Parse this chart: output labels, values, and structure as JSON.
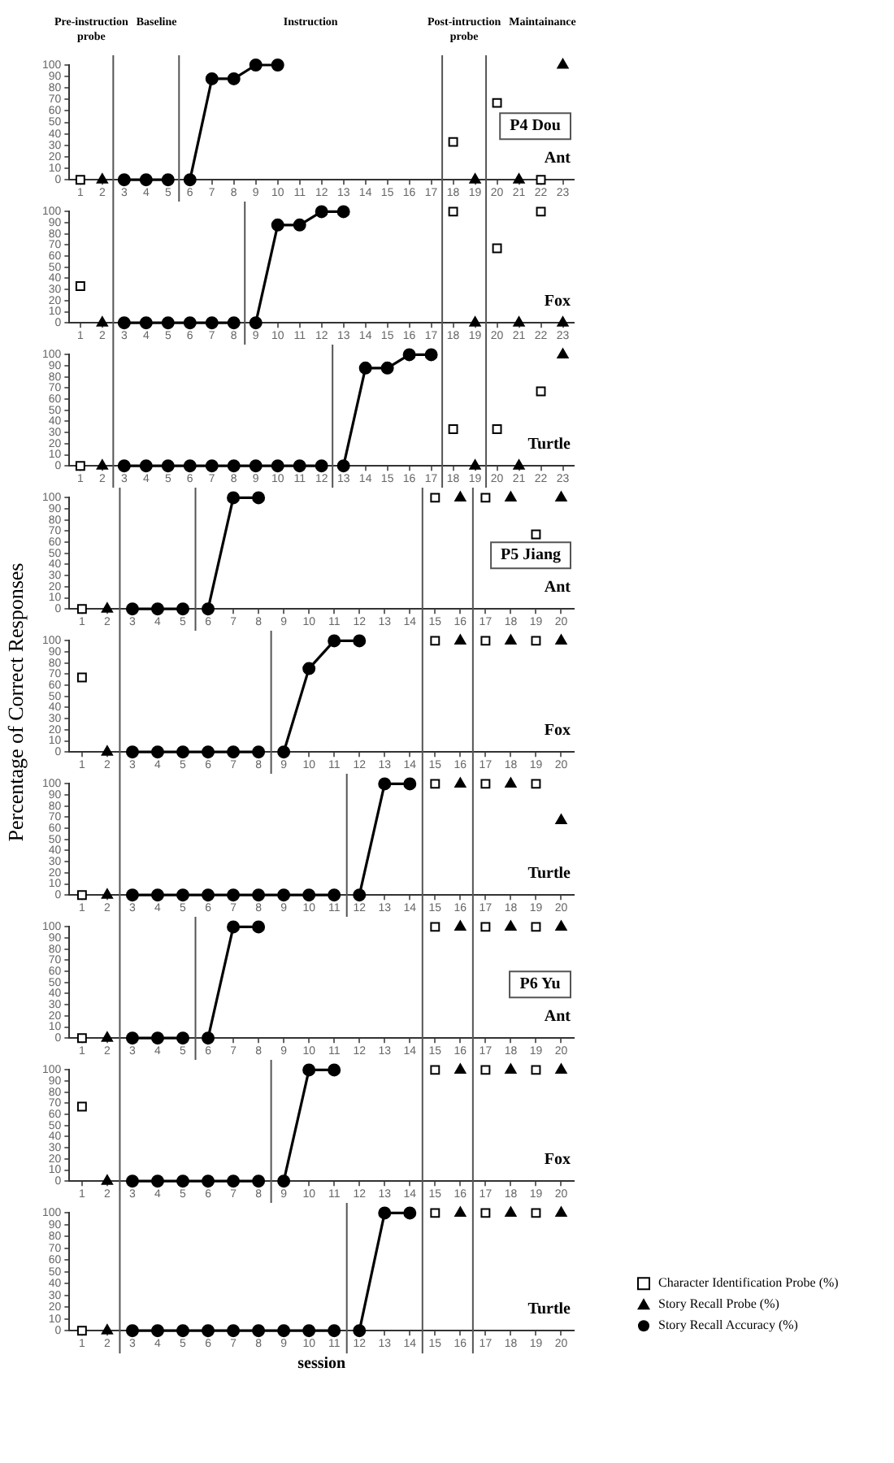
{
  "chart_data": [
    {
      "type": "line",
      "title": "Ant",
      "subtitle": "P4 Dou",
      "annotations": [
        "Pre-instruction probe",
        "Baseline",
        "Instruction",
        "Post-intruction probe",
        "Maintainance"
      ],
      "xlim": [
        0.5,
        23.5
      ],
      "xticks": [
        1,
        2,
        3,
        4,
        5,
        6,
        7,
        8,
        9,
        10,
        11,
        12,
        13,
        14,
        15,
        16,
        17,
        18,
        19,
        20,
        21,
        22,
        23
      ],
      "ylim": [
        0,
        100
      ],
      "yticks": [
        0,
        10,
        20,
        30,
        40,
        50,
        60,
        70,
        80,
        90,
        100
      ],
      "ref_lines": [
        {
          "axis": "x",
          "value": 2.5
        },
        {
          "axis": "x",
          "value": 5.5
        },
        {
          "axis": "x",
          "value": 17.5
        },
        {
          "axis": "x",
          "value": 19.5
        }
      ],
      "series": [
        {
          "type": "scatter",
          "marker": "square",
          "color": "#000000",
          "x": [
            1,
            18,
            20,
            22
          ],
          "values": [
            0,
            33,
            67,
            0
          ]
        },
        {
          "type": "scatter",
          "marker": "triangle",
          "color": "#000000",
          "x": [
            2,
            19,
            21,
            23
          ],
          "values": [
            0,
            0,
            0,
            100
          ]
        },
        {
          "type": "line",
          "marker": "circle",
          "color": "#000000",
          "x": [
            3,
            4,
            5
          ],
          "values": [
            0,
            0,
            0
          ]
        },
        {
          "type": "line",
          "marker": "circle",
          "color": "#000000",
          "x": [
            6,
            7,
            8,
            9,
            10
          ],
          "values": [
            0,
            88,
            88,
            100,
            100
          ]
        }
      ]
    },
    {
      "type": "line",
      "title": "Fox",
      "xlim": [
        0.5,
        23.5
      ],
      "xticks": [
        1,
        2,
        3,
        4,
        5,
        6,
        7,
        8,
        9,
        10,
        11,
        12,
        13,
        14,
        15,
        16,
        17,
        18,
        19,
        20,
        21,
        22,
        23
      ],
      "ylim": [
        0,
        100
      ],
      "yticks": [
        0,
        10,
        20,
        30,
        40,
        50,
        60,
        70,
        80,
        90,
        100
      ],
      "ref_lines": [
        {
          "axis": "x",
          "value": 2.5
        },
        {
          "axis": "x",
          "value": 8.5
        },
        {
          "axis": "x",
          "value": 17.5
        },
        {
          "axis": "x",
          "value": 19.5
        }
      ],
      "series": [
        {
          "type": "scatter",
          "marker": "square",
          "color": "#000000",
          "x": [
            1,
            18,
            20,
            22
          ],
          "values": [
            33,
            100,
            67,
            100
          ]
        },
        {
          "type": "scatter",
          "marker": "triangle",
          "color": "#000000",
          "x": [
            2,
            19,
            21,
            23
          ],
          "values": [
            0,
            0,
            0,
            0
          ]
        },
        {
          "type": "line",
          "marker": "circle",
          "color": "#000000",
          "x": [
            3,
            4,
            5,
            6,
            7,
            8
          ],
          "values": [
            0,
            0,
            0,
            0,
            0,
            0
          ]
        },
        {
          "type": "line",
          "marker": "circle",
          "color": "#000000",
          "x": [
            9,
            10,
            11,
            12,
            13
          ],
          "values": [
            0,
            88,
            88,
            100,
            100
          ]
        }
      ]
    },
    {
      "type": "line",
      "title": "Turtle",
      "xlim": [
        0.5,
        23.5
      ],
      "xticks": [
        1,
        2,
        3,
        4,
        5,
        6,
        7,
        8,
        9,
        10,
        11,
        12,
        13,
        14,
        15,
        16,
        17,
        18,
        19,
        20,
        21,
        22,
        23
      ],
      "ylim": [
        0,
        100
      ],
      "yticks": [
        0,
        10,
        20,
        30,
        40,
        50,
        60,
        70,
        80,
        90,
        100
      ],
      "ref_lines": [
        {
          "axis": "x",
          "value": 2.5
        },
        {
          "axis": "x",
          "value": 12.5
        },
        {
          "axis": "x",
          "value": 17.5
        },
        {
          "axis": "x",
          "value": 19.5
        }
      ],
      "series": [
        {
          "type": "scatter",
          "marker": "square",
          "color": "#000000",
          "x": [
            1,
            18,
            20,
            22
          ],
          "values": [
            0,
            33,
            33,
            67
          ]
        },
        {
          "type": "scatter",
          "marker": "triangle",
          "color": "#000000",
          "x": [
            2,
            19,
            21,
            23
          ],
          "values": [
            0,
            0,
            0,
            100
          ]
        },
        {
          "type": "line",
          "marker": "circle",
          "color": "#000000",
          "x": [
            3,
            4,
            5,
            6,
            7,
            8,
            9,
            10,
            11,
            12
          ],
          "values": [
            0,
            0,
            0,
            0,
            0,
            0,
            0,
            0,
            0,
            0
          ]
        },
        {
          "type": "line",
          "marker": "circle",
          "color": "#000000",
          "x": [
            13,
            14,
            15,
            16,
            17
          ],
          "values": [
            0,
            88,
            88,
            100,
            100
          ]
        }
      ]
    },
    {
      "type": "line",
      "title": "Ant",
      "subtitle": "P5 Jiang",
      "xlim": [
        0.5,
        20.5
      ],
      "xticks": [
        1,
        2,
        3,
        4,
        5,
        6,
        7,
        8,
        9,
        10,
        11,
        12,
        13,
        14,
        15,
        16,
        17,
        18,
        19,
        20
      ],
      "ylim": [
        0,
        100
      ],
      "yticks": [
        0,
        10,
        20,
        30,
        40,
        50,
        60,
        70,
        80,
        90,
        100
      ],
      "ref_lines": [
        {
          "axis": "x",
          "value": 2.5
        },
        {
          "axis": "x",
          "value": 5.5
        },
        {
          "axis": "x",
          "value": 14.5
        },
        {
          "axis": "x",
          "value": 16.5
        }
      ],
      "series": [
        {
          "type": "scatter",
          "marker": "square",
          "color": "#000000",
          "x": [
            1,
            15,
            17,
            19
          ],
          "values": [
            0,
            100,
            100,
            67
          ]
        },
        {
          "type": "scatter",
          "marker": "triangle",
          "color": "#000000",
          "x": [
            2,
            16,
            18,
            20
          ],
          "values": [
            0,
            100,
            100,
            100
          ]
        },
        {
          "type": "line",
          "marker": "circle",
          "color": "#000000",
          "x": [
            3,
            4,
            5
          ],
          "values": [
            0,
            0,
            0
          ]
        },
        {
          "type": "line",
          "marker": "circle",
          "color": "#000000",
          "x": [
            6,
            7,
            8
          ],
          "values": [
            0,
            100,
            100
          ]
        }
      ]
    },
    {
      "type": "line",
      "title": "Fox",
      "ylabel": "Percentage of Correct Responses",
      "xlim": [
        0.5,
        20.5
      ],
      "xticks": [
        1,
        2,
        3,
        4,
        5,
        6,
        7,
        8,
        9,
        10,
        11,
        12,
        13,
        14,
        15,
        16,
        17,
        18,
        19,
        20
      ],
      "ylim": [
        0,
        100
      ],
      "yticks": [
        0,
        10,
        20,
        30,
        40,
        50,
        60,
        70,
        80,
        90,
        100
      ],
      "ref_lines": [
        {
          "axis": "x",
          "value": 2.5
        },
        {
          "axis": "x",
          "value": 8.5
        },
        {
          "axis": "x",
          "value": 14.5
        },
        {
          "axis": "x",
          "value": 16.5
        }
      ],
      "series": [
        {
          "type": "scatter",
          "marker": "square",
          "color": "#000000",
          "x": [
            1,
            15,
            17,
            19
          ],
          "values": [
            67,
            100,
            100,
            100
          ]
        },
        {
          "type": "scatter",
          "marker": "triangle",
          "color": "#000000",
          "x": [
            2,
            16,
            18,
            20
          ],
          "values": [
            0,
            100,
            100,
            100
          ]
        },
        {
          "type": "line",
          "marker": "circle",
          "color": "#000000",
          "x": [
            3,
            4,
            5,
            6,
            7,
            8
          ],
          "values": [
            0,
            0,
            0,
            0,
            0,
            0
          ]
        },
        {
          "type": "line",
          "marker": "circle",
          "color": "#000000",
          "x": [
            9,
            10,
            11,
            12
          ],
          "values": [
            0,
            75,
            100,
            100
          ]
        }
      ]
    },
    {
      "type": "line",
      "title": "Turtle",
      "xlim": [
        0.5,
        20.5
      ],
      "xticks": [
        1,
        2,
        3,
        4,
        5,
        6,
        7,
        8,
        9,
        10,
        11,
        12,
        13,
        14,
        15,
        16,
        17,
        18,
        19,
        20
      ],
      "ylim": [
        0,
        100
      ],
      "yticks": [
        0,
        10,
        20,
        30,
        40,
        50,
        60,
        70,
        80,
        90,
        100
      ],
      "ref_lines": [
        {
          "axis": "x",
          "value": 2.5
        },
        {
          "axis": "x",
          "value": 11.5
        },
        {
          "axis": "x",
          "value": 14.5
        },
        {
          "axis": "x",
          "value": 16.5
        }
      ],
      "series": [
        {
          "type": "scatter",
          "marker": "square",
          "color": "#000000",
          "x": [
            1,
            15,
            17,
            19
          ],
          "values": [
            0,
            100,
            100,
            100
          ]
        },
        {
          "type": "scatter",
          "marker": "triangle",
          "color": "#000000",
          "x": [
            2,
            16,
            18,
            20
          ],
          "values": [
            0,
            100,
            100,
            67
          ]
        },
        {
          "type": "line",
          "marker": "circle",
          "color": "#000000",
          "x": [
            3,
            4,
            5,
            6,
            7,
            8,
            9,
            10,
            11
          ],
          "values": [
            0,
            0,
            0,
            0,
            0,
            0,
            0,
            0,
            0
          ]
        },
        {
          "type": "line",
          "marker": "circle",
          "color": "#000000",
          "x": [
            12,
            13,
            14
          ],
          "values": [
            0,
            100,
            100
          ]
        }
      ]
    },
    {
      "type": "line",
      "title": "Ant",
      "subtitle": "P6 Yu",
      "xlim": [
        0.5,
        20.5
      ],
      "xticks": [
        1,
        2,
        3,
        4,
        5,
        6,
        7,
        8,
        9,
        10,
        11,
        12,
        13,
        14,
        15,
        16,
        17,
        18,
        19,
        20
      ],
      "ylim": [
        0,
        100
      ],
      "yticks": [
        0,
        10,
        20,
        30,
        40,
        50,
        60,
        70,
        80,
        90,
        100
      ],
      "ref_lines": [
        {
          "axis": "x",
          "value": 2.5
        },
        {
          "axis": "x",
          "value": 5.5
        },
        {
          "axis": "x",
          "value": 14.5
        },
        {
          "axis": "x",
          "value": 16.5
        }
      ],
      "series": [
        {
          "type": "scatter",
          "marker": "square",
          "color": "#000000",
          "x": [
            1,
            15,
            17,
            19
          ],
          "values": [
            0,
            100,
            100,
            100
          ]
        },
        {
          "type": "scatter",
          "marker": "triangle",
          "color": "#000000",
          "x": [
            2,
            16,
            18,
            20
          ],
          "values": [
            0,
            100,
            100,
            100
          ]
        },
        {
          "type": "line",
          "marker": "circle",
          "color": "#000000",
          "x": [
            3,
            4,
            5
          ],
          "values": [
            0,
            0,
            0
          ]
        },
        {
          "type": "line",
          "marker": "circle",
          "color": "#000000",
          "x": [
            6,
            7,
            8
          ],
          "values": [
            0,
            100,
            100
          ]
        }
      ]
    },
    {
      "type": "line",
      "title": "Fox",
      "xlim": [
        0.5,
        20.5
      ],
      "xticks": [
        1,
        2,
        3,
        4,
        5,
        6,
        7,
        8,
        9,
        10,
        11,
        12,
        13,
        14,
        15,
        16,
        17,
        18,
        19,
        20
      ],
      "ylim": [
        0,
        100
      ],
      "yticks": [
        0,
        10,
        20,
        30,
        40,
        50,
        60,
        70,
        80,
        90,
        100
      ],
      "ref_lines": [
        {
          "axis": "x",
          "value": 2.5
        },
        {
          "axis": "x",
          "value": 8.5
        },
        {
          "axis": "x",
          "value": 14.5
        },
        {
          "axis": "x",
          "value": 16.5
        }
      ],
      "series": [
        {
          "type": "scatter",
          "marker": "square",
          "color": "#000000",
          "x": [
            1,
            15,
            17,
            19
          ],
          "values": [
            67,
            100,
            100,
            100
          ]
        },
        {
          "type": "scatter",
          "marker": "triangle",
          "color": "#000000",
          "x": [
            2,
            16,
            18,
            20
          ],
          "values": [
            0,
            100,
            100,
            100
          ]
        },
        {
          "type": "line",
          "marker": "circle",
          "color": "#000000",
          "x": [
            3,
            4,
            5,
            6,
            7,
            8
          ],
          "values": [
            0,
            0,
            0,
            0,
            0,
            0
          ]
        },
        {
          "type": "line",
          "marker": "circle",
          "color": "#000000",
          "x": [
            9,
            10,
            11
          ],
          "values": [
            0,
            100,
            100
          ]
        }
      ]
    },
    {
      "type": "line",
      "title": "Turtle",
      "xlabel": "session",
      "legend": "right",
      "xlim": [
        0.5,
        20.5
      ],
      "xticks": [
        1,
        2,
        3,
        4,
        5,
        6,
        7,
        8,
        9,
        10,
        11,
        12,
        13,
        14,
        15,
        16,
        17,
        18,
        19,
        20
      ],
      "ylim": [
        0,
        100
      ],
      "yticks": [
        0,
        10,
        20,
        30,
        40,
        50,
        60,
        70,
        80,
        90,
        100
      ],
      "ref_lines": [
        {
          "axis": "x",
          "value": 2.5
        },
        {
          "axis": "x",
          "value": 11.5
        },
        {
          "axis": "x",
          "value": 14.5
        },
        {
          "axis": "x",
          "value": 16.5
        }
      ],
      "series": [
        {
          "name": "Character Identification Probe (%)",
          "type": "scatter",
          "marker": "square",
          "color": "#000000",
          "x": [
            1,
            15,
            17,
            19
          ],
          "values": [
            0,
            100,
            100,
            100
          ]
        },
        {
          "name": "Story Recall Probe (%)",
          "type": "scatter",
          "marker": "triangle",
          "color": "#000000",
          "x": [
            2,
            16,
            18,
            20
          ],
          "values": [
            0,
            100,
            100,
            100
          ]
        },
        {
          "name": "Story Recall Accuracy (%)",
          "type": "line",
          "marker": "circle",
          "color": "#000000",
          "x": [
            3,
            4,
            5,
            6,
            7,
            8,
            9,
            10,
            11
          ],
          "values": [
            0,
            0,
            0,
            0,
            0,
            0,
            0,
            0,
            0
          ]
        },
        {
          "type": "line",
          "marker": "circle",
          "color": "#000000",
          "x": [
            12,
            13,
            14
          ],
          "values": [
            0,
            100,
            100
          ]
        }
      ]
    }
  ]
}
